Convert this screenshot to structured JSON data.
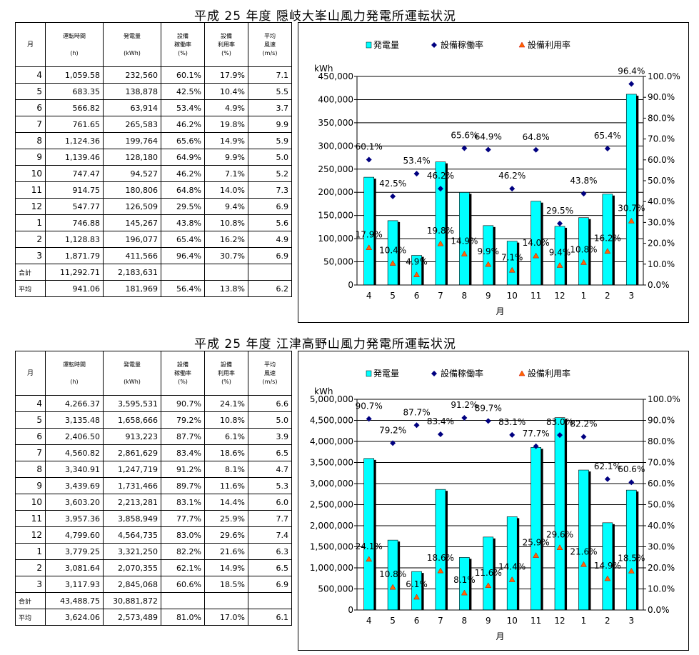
{
  "sections": [
    {
      "title": "平成 25 年度 隠岐大峯山風力発電所運転状況",
      "headers": {
        "month": "月",
        "hours": "運転時間",
        "hours_unit": "(h)",
        "energy": "発電量",
        "energy_unit": "(kWh)",
        "avail": "設備\n稼働率",
        "avail_unit": "(%)",
        "util": "設備\n利用率",
        "util_unit": "(%)",
        "wind": "平均\n風速",
        "wind_unit": "(m/s)"
      },
      "rows": [
        {
          "month": "4",
          "hours": "1,059.58",
          "energy": "232,560",
          "avail": "60.1%",
          "util": "17.9%",
          "wind": "7.1"
        },
        {
          "month": "5",
          "hours": "683.35",
          "energy": "138,878",
          "avail": "42.5%",
          "util": "10.4%",
          "wind": "5.5"
        },
        {
          "month": "6",
          "hours": "566.82",
          "energy": "63,914",
          "avail": "53.4%",
          "util": "4.9%",
          "wind": "3.7"
        },
        {
          "month": "7",
          "hours": "761.65",
          "energy": "265,583",
          "avail": "46.2%",
          "util": "19.8%",
          "wind": "9.9"
        },
        {
          "month": "8",
          "hours": "1,124.36",
          "energy": "199,764",
          "avail": "65.6%",
          "util": "14.9%",
          "wind": "5.9"
        },
        {
          "month": "9",
          "hours": "1,139.46",
          "energy": "128,180",
          "avail": "64.9%",
          "util": "9.9%",
          "wind": "5.0"
        },
        {
          "month": "10",
          "hours": "747.47",
          "energy": "94,527",
          "avail": "46.2%",
          "util": "7.1%",
          "wind": "5.2"
        },
        {
          "month": "11",
          "hours": "914.75",
          "energy": "180,806",
          "avail": "64.8%",
          "util": "14.0%",
          "wind": "7.3"
        },
        {
          "month": "12",
          "hours": "547.77",
          "energy": "126,509",
          "avail": "29.5%",
          "util": "9.4%",
          "wind": "6.9"
        },
        {
          "month": "1",
          "hours": "746.88",
          "energy": "145,267",
          "avail": "43.8%",
          "util": "10.8%",
          "wind": "5.6"
        },
        {
          "month": "2",
          "hours": "1,128.83",
          "energy": "196,077",
          "avail": "65.4%",
          "util": "16.2%",
          "wind": "4.9"
        },
        {
          "month": "3",
          "hours": "1,871.79",
          "energy": "411,566",
          "avail": "96.4%",
          "util": "30.7%",
          "wind": "6.9"
        }
      ],
      "total": {
        "label": "合計",
        "hours": "11,292.71",
        "energy": "2,183,631",
        "avail": "",
        "util": "",
        "wind": ""
      },
      "average": {
        "label": "平均",
        "hours": "941.06",
        "energy": "181,969",
        "avail": "56.4%",
        "util": "13.8%",
        "wind": "6.2"
      }
    },
    {
      "title": "平成 25 年度 江津高野山風力発電所運転状況",
      "headers": {
        "month": "月",
        "hours": "運転時間",
        "hours_unit": "(h)",
        "energy": "発電量",
        "energy_unit": "(kWh)",
        "avail": "設備\n稼働率",
        "avail_unit": "(%)",
        "util": "設備\n利用率",
        "util_unit": "(%)",
        "wind": "平均\n風速",
        "wind_unit": "(m/s)"
      },
      "rows": [
        {
          "month": "4",
          "hours": "4,266.37",
          "energy": "3,595,531",
          "avail": "90.7%",
          "util": "24.1%",
          "wind": "6.6"
        },
        {
          "month": "5",
          "hours": "3,135.48",
          "energy": "1,658,666",
          "avail": "79.2%",
          "util": "10.8%",
          "wind": "5.0"
        },
        {
          "month": "6",
          "hours": "2,406.50",
          "energy": "913,223",
          "avail": "87.7%",
          "util": "6.1%",
          "wind": "3.9"
        },
        {
          "month": "7",
          "hours": "4,560.82",
          "energy": "2,861,629",
          "avail": "83.4%",
          "util": "18.6%",
          "wind": "6.5"
        },
        {
          "month": "8",
          "hours": "3,340.91",
          "energy": "1,247,719",
          "avail": "91.2%",
          "util": "8.1%",
          "wind": "4.7"
        },
        {
          "month": "9",
          "hours": "3,439.69",
          "energy": "1,731,466",
          "avail": "89.7%",
          "util": "11.6%",
          "wind": "5.3"
        },
        {
          "month": "10",
          "hours": "3,603.20",
          "energy": "2,213,281",
          "avail": "83.1%",
          "util": "14.4%",
          "wind": "6.0"
        },
        {
          "month": "11",
          "hours": "3,957.36",
          "energy": "3,858,949",
          "avail": "77.7%",
          "util": "25.9%",
          "wind": "7.7"
        },
        {
          "month": "12",
          "hours": "4,799.60",
          "energy": "4,564,735",
          "avail": "83.0%",
          "util": "29.6%",
          "wind": "7.4"
        },
        {
          "month": "1",
          "hours": "3,779.25",
          "energy": "3,321,250",
          "avail": "82.2%",
          "util": "21.6%",
          "wind": "6.3"
        },
        {
          "month": "2",
          "hours": "3,081.64",
          "energy": "2,070,355",
          "avail": "62.1%",
          "util": "14.9%",
          "wind": "6.5"
        },
        {
          "month": "3",
          "hours": "3,117.93",
          "energy": "2,845,068",
          "avail": "60.6%",
          "util": "18.5%",
          "wind": "6.9"
        }
      ],
      "total": {
        "label": "合計",
        "hours": "43,488.75",
        "energy": "30,881,872",
        "avail": "",
        "util": "",
        "wind": ""
      },
      "average": {
        "label": "平均",
        "hours": "3,624.06",
        "energy": "2,573,489",
        "avail": "81.0%",
        "util": "17.0%",
        "wind": "6.1"
      }
    }
  ],
  "chart_data": [
    {
      "type": "bar",
      "categories": [
        "4",
        "5",
        "6",
        "7",
        "8",
        "9",
        "10",
        "11",
        "12",
        "1",
        "2",
        "3"
      ],
      "xlabel": "月",
      "ylabel_left": "kWh",
      "ylim_left": [
        0,
        450000
      ],
      "yticks_left": [
        "0",
        "50,000",
        "100,000",
        "150,000",
        "200,000",
        "250,000",
        "300,000",
        "350,000",
        "400,000",
        "450,000"
      ],
      "ylim_right": [
        0,
        100
      ],
      "yticks_right": [
        "0.0%",
        "10.0%",
        "20.0%",
        "30.0%",
        "40.0%",
        "50.0%",
        "60.0%",
        "70.0%",
        "80.0%",
        "90.0%",
        "100.0%"
      ],
      "legend_position": "top",
      "series": [
        {
          "name": "発電量",
          "kind": "bar",
          "axis": "left",
          "color": "#00ffff",
          "values": [
            232560,
            138878,
            63914,
            265583,
            199764,
            128180,
            94527,
            180806,
            126509,
            145267,
            196077,
            411566
          ]
        },
        {
          "name": "設備稼働率",
          "kind": "marker-diamond",
          "axis": "right",
          "color": "#000080",
          "values": [
            60.1,
            42.5,
            53.4,
            46.2,
            65.6,
            64.9,
            46.2,
            64.8,
            29.5,
            43.8,
            65.4,
            96.4
          ],
          "labels": [
            "60.1%",
            "42.5%",
            "53.4%",
            "46.2%",
            "65.6%",
            "64.9%",
            "46.2%",
            "64.8%",
            "29.5%",
            "43.8%",
            "65.4%",
            "96.4%"
          ]
        },
        {
          "name": "設備利用率",
          "kind": "marker-triangle",
          "axis": "right",
          "color": "#ff6600",
          "values": [
            17.9,
            10.4,
            4.9,
            19.8,
            14.9,
            9.9,
            7.1,
            14.0,
            9.4,
            10.8,
            16.2,
            30.7
          ],
          "labels": [
            "17.9%",
            "10.4%",
            "4.9%",
            "19.8%",
            "14.9%",
            "9.9%",
            "7.1%",
            "14.0%",
            "9.4%",
            "10.8%",
            "16.2%",
            "30.7%"
          ]
        }
      ]
    },
    {
      "type": "bar",
      "categories": [
        "4",
        "5",
        "6",
        "7",
        "8",
        "9",
        "10",
        "11",
        "12",
        "1",
        "2",
        "3"
      ],
      "xlabel": "月",
      "ylabel_left": "kWh",
      "ylim_left": [
        0,
        5000000
      ],
      "yticks_left": [
        "0",
        "500,000",
        "1,000,000",
        "1,500,000",
        "2,000,000",
        "2,500,000",
        "3,000,000",
        "3,500,000",
        "4,000,000",
        "4,500,000",
        "5,000,000"
      ],
      "ylim_right": [
        0,
        100
      ],
      "yticks_right": [
        "0.0%",
        "10.0%",
        "20.0%",
        "30.0%",
        "40.0%",
        "50.0%",
        "60.0%",
        "70.0%",
        "80.0%",
        "90.0%",
        "100.0%"
      ],
      "legend_position": "top",
      "series": [
        {
          "name": "発電量",
          "kind": "bar",
          "axis": "left",
          "color": "#00ffff",
          "values": [
            3595531,
            1658666,
            913223,
            2861629,
            1247719,
            1731466,
            2213281,
            3858949,
            4564735,
            3321250,
            2070355,
            2845068
          ]
        },
        {
          "name": "設備稼働率",
          "kind": "marker-diamond",
          "axis": "right",
          "color": "#000080",
          "values": [
            90.7,
            79.2,
            87.7,
            83.4,
            91.2,
            89.7,
            83.1,
            77.7,
            83.0,
            82.2,
            62.1,
            60.6
          ],
          "labels": [
            "90.7%",
            "79.2%",
            "87.7%",
            "83.4%",
            "91.2%",
            "89.7%",
            "83.1%",
            "77.7%",
            "83.0%",
            "82.2%",
            "62.1%",
            "60.6%"
          ]
        },
        {
          "name": "設備利用率",
          "kind": "marker-triangle",
          "axis": "right",
          "color": "#ff6600",
          "values": [
            24.1,
            10.8,
            6.1,
            18.6,
            8.1,
            11.6,
            14.4,
            25.9,
            29.6,
            21.6,
            14.9,
            18.5
          ],
          "labels": [
            "24.1%",
            "10.8%",
            "6.1%",
            "18.6%",
            "8.1%",
            "11.6%",
            "14.4%",
            "25.9%",
            "29.6%",
            "21.6%",
            "14.9%",
            "18.5%"
          ]
        }
      ]
    }
  ]
}
